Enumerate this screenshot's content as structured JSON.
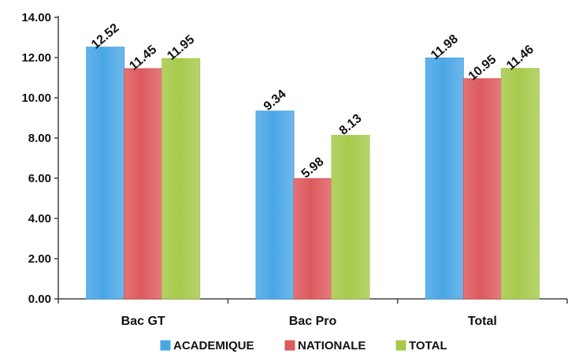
{
  "chart_data": {
    "type": "bar",
    "categories": [
      "Bac GT",
      "Bac Pro",
      "Total"
    ],
    "series": [
      {
        "name": "ACADEMIQUE",
        "values": [
          12.52,
          9.34,
          11.98
        ],
        "labels": [
          "12.52",
          "9.34",
          "11.98"
        ],
        "color": "#4aa6e6"
      },
      {
        "name": "NATIONALE",
        "values": [
          11.45,
          5.98,
          10.95
        ],
        "labels": [
          "11.45",
          "5.98",
          "10.95"
        ],
        "color": "#dd5a5e"
      },
      {
        "name": "TOTAL",
        "values": [
          11.95,
          8.13,
          11.46
        ],
        "labels": [
          "11.95",
          "8.13",
          "11.46"
        ],
        "color": "#a7c94b"
      }
    ],
    "ylim": [
      0,
      14
    ],
    "yticks": [
      "0.00",
      "2.00",
      "4.00",
      "6.00",
      "8.00",
      "10.00",
      "12.00",
      "14.00"
    ],
    "ytick_values": [
      0,
      2,
      4,
      6,
      8,
      10,
      12,
      14
    ],
    "grid": false,
    "legend": "bottom",
    "title": "",
    "xlabel": "",
    "ylabel": ""
  }
}
